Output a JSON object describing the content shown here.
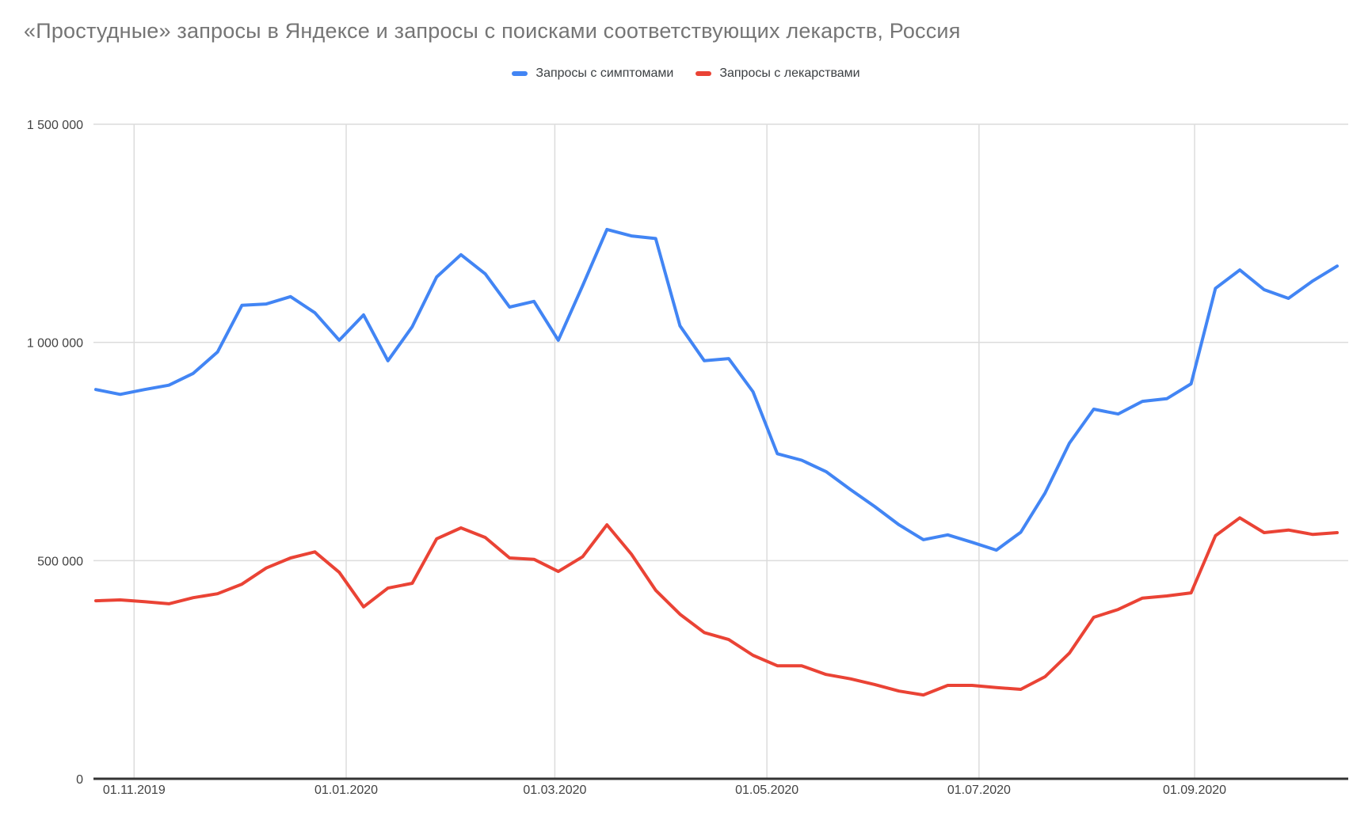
{
  "page": {
    "background": "#ffffff"
  },
  "header": {
    "title": "«Простудные» запросы в Яндексе и запросы с поисками соответствующих лекарств, Россия"
  },
  "legend": {
    "items": [
      {
        "label": "Запросы с симптомами",
        "color": "#4285f4"
      },
      {
        "label": "Запросы с лекарствами",
        "color": "#ea4335"
      }
    ]
  },
  "chart_data": {
    "type": "line",
    "title": "«Простудные» запросы в Яндексе и запросы с поисками соответствующих лекарств, Россия",
    "xlabel": "",
    "ylabel": "",
    "x": [
      "21.10.2019",
      "28.10.2019",
      "04.11.2019",
      "11.11.2019",
      "18.11.2019",
      "25.11.2019",
      "02.12.2019",
      "09.12.2019",
      "16.12.2019",
      "23.12.2019",
      "30.12.2019",
      "06.01.2020",
      "13.01.2020",
      "20.01.2020",
      "27.01.2020",
      "03.02.2020",
      "10.02.2020",
      "17.02.2020",
      "24.02.2020",
      "02.03.2020",
      "09.03.2020",
      "16.03.2020",
      "23.03.2020",
      "30.03.2020",
      "06.04.2020",
      "13.04.2020",
      "20.04.2020",
      "27.04.2020",
      "04.05.2020",
      "11.05.2020",
      "18.05.2020",
      "25.05.2020",
      "01.06.2020",
      "08.06.2020",
      "15.06.2020",
      "22.06.2020",
      "29.06.2020",
      "06.07.2020",
      "13.07.2020",
      "20.07.2020",
      "27.07.2020",
      "03.08.2020",
      "10.08.2020",
      "17.08.2020",
      "24.08.2020",
      "31.08.2020",
      "07.09.2020",
      "14.09.2020",
      "21.09.2020",
      "28.09.2020",
      "05.10.2020",
      "12.10.2020"
    ],
    "series": [
      {
        "name": "Запросы с симптомами",
        "color": "#4285f4",
        "values": [
          892000,
          881000,
          892000,
          902000,
          929000,
          978000,
          1085000,
          1088000,
          1105000,
          1068000,
          1005000,
          1063000,
          958000,
          1036000,
          1150000,
          1201000,
          1157000,
          1081000,
          1094000,
          1005000,
          1130000,
          1259000,
          1244000,
          1238000,
          1038000,
          958000,
          963000,
          887000,
          745000,
          730000,
          704000,
          663000,
          624000,
          582000,
          548000,
          559000,
          542000,
          524000,
          565000,
          655000,
          769000,
          847000,
          836000,
          865000,
          871000,
          905000,
          1124000,
          1166000,
          1121000,
          1101000,
          1141000,
          1175000
        ]
      },
      {
        "name": "Запросы с лекарствами",
        "color": "#ea4335",
        "values": [
          408000,
          410000,
          406000,
          401000,
          415000,
          424000,
          446000,
          483000,
          506000,
          520000,
          473000,
          394000,
          437000,
          448000,
          550000,
          575000,
          553000,
          506000,
          503000,
          475000,
          509000,
          582000,
          515000,
          432000,
          377000,
          335000,
          319000,
          283000,
          259000,
          259000,
          239000,
          229000,
          216000,
          201000,
          192000,
          214000,
          214000,
          209000,
          205000,
          234000,
          288000,
          370000,
          388000,
          414000,
          419000,
          426000,
          557000,
          598000,
          564000,
          570000,
          560000,
          564000
        ]
      }
    ],
    "ylim": [
      0,
      1500000
    ],
    "grid": true,
    "legend_position": "top-center",
    "yticks": [
      {
        "value": 0,
        "label": "0"
      },
      {
        "value": 500000,
        "label": "500 000"
      },
      {
        "value": 1000000,
        "label": "1 000 000"
      },
      {
        "value": 1500000,
        "label": "1 500 000"
      }
    ],
    "xticks": [
      {
        "date": "01.11.2019",
        "label": "01.11.2019"
      },
      {
        "date": "01.01.2020",
        "label": "01.01.2020"
      },
      {
        "date": "01.03.2020",
        "label": "01.03.2020"
      },
      {
        "date": "01.05.2020",
        "label": "01.05.2020"
      },
      {
        "date": "01.07.2020",
        "label": "01.07.2020"
      },
      {
        "date": "01.09.2020",
        "label": "01.09.2020"
      }
    ],
    "colors": {
      "gridline": "#dcdcdc",
      "baseline": "#333333",
      "axis_label": "#424242",
      "title": "#757575",
      "background": "#ffffff"
    }
  }
}
